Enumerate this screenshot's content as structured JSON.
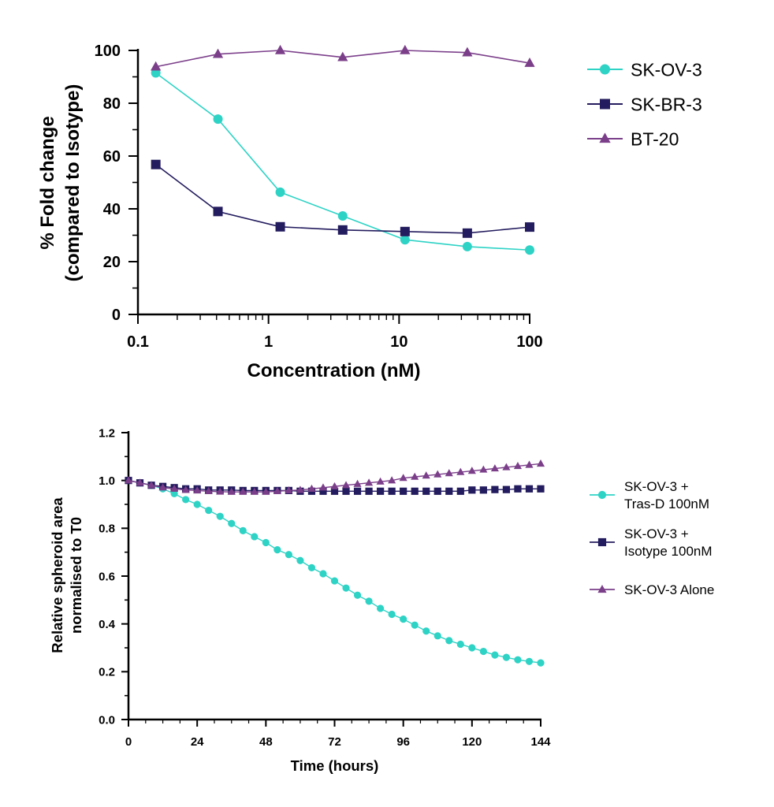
{
  "chart_data": [
    {
      "type": "line",
      "xscale": "log",
      "xlabel": "Concentration (nM)",
      "ylabel_lines": [
        "% Fold change",
        "(compared to Isotype)"
      ],
      "xlim": [
        0.1,
        100
      ],
      "ylim": [
        0,
        100
      ],
      "x_ticks": [
        {
          "value": 0.1,
          "label": "0.1"
        },
        {
          "value": 1,
          "label": "1"
        },
        {
          "value": 10,
          "label": "10"
        },
        {
          "value": 100,
          "label": "100"
        }
      ],
      "y_ticks": [
        {
          "value": 0,
          "label": "0"
        },
        {
          "value": 20,
          "label": "20"
        },
        {
          "value": 40,
          "label": "40"
        },
        {
          "value": 60,
          "label": "60"
        },
        {
          "value": 80,
          "label": "80"
        },
        {
          "value": 100,
          "label": "100"
        }
      ],
      "grid": false,
      "legend": "right",
      "x": [
        0.137,
        0.41,
        1.23,
        3.7,
        11.1,
        33.3,
        100
      ],
      "series": [
        {
          "name": "SK-OV-3",
          "marker": "circle",
          "color": "#2ed3c6",
          "values": [
            91.5,
            74.0,
            46.3,
            37.3,
            28.3,
            25.7,
            24.4
          ]
        },
        {
          "name": "SK-BR-3",
          "marker": "square",
          "color": "#231c5e",
          "values": [
            56.8,
            39.0,
            33.2,
            32.0,
            31.4,
            30.8,
            33.1
          ]
        },
        {
          "name": "BT-20",
          "marker": "triangle",
          "color": "#7b3f8a",
          "values": [
            93.8,
            98.6,
            100.0,
            97.4,
            100.0,
            99.2,
            95.2
          ]
        }
      ]
    },
    {
      "type": "line",
      "xlabel": "Time (hours)",
      "ylabel_lines": [
        "Relative spheroid area",
        "normalised to T0"
      ],
      "xlim": [
        0,
        144
      ],
      "ylim": [
        0,
        1.2
      ],
      "x_ticks": [
        {
          "value": 0,
          "label": "0"
        },
        {
          "value": 24,
          "label": "24"
        },
        {
          "value": 48,
          "label": "48"
        },
        {
          "value": 72,
          "label": "72"
        },
        {
          "value": 96,
          "label": "96"
        },
        {
          "value": 120,
          "label": "120"
        },
        {
          "value": 144,
          "label": "144"
        }
      ],
      "y_ticks": [
        {
          "value": 0,
          "label": "0.0"
        },
        {
          "value": 0.2,
          "label": "0.2"
        },
        {
          "value": 0.4,
          "label": "0.4"
        },
        {
          "value": 0.6,
          "label": "0.6"
        },
        {
          "value": 0.8,
          "label": "0.8"
        },
        {
          "value": 1.0,
          "label": "1.0"
        },
        {
          "value": 1.2,
          "label": "1.2"
        }
      ],
      "grid": false,
      "legend": "right",
      "x": [
        0,
        4,
        8,
        12,
        16,
        20,
        24,
        28,
        32,
        36,
        40,
        44,
        48,
        52,
        56,
        60,
        64,
        68,
        72,
        76,
        80,
        84,
        88,
        92,
        96,
        100,
        104,
        108,
        112,
        116,
        120,
        124,
        128,
        132,
        136,
        140,
        144
      ],
      "series": [
        {
          "name_lines": [
            "SK-OV-3 +",
            "Tras-D 100nM"
          ],
          "marker": "circle",
          "color": "#2ed3c6",
          "values": [
            1.0,
            0.99,
            0.98,
            0.965,
            0.945,
            0.92,
            0.9,
            0.875,
            0.85,
            0.82,
            0.79,
            0.765,
            0.74,
            0.71,
            0.69,
            0.665,
            0.635,
            0.61,
            0.58,
            0.55,
            0.52,
            0.495,
            0.465,
            0.44,
            0.42,
            0.395,
            0.37,
            0.35,
            0.33,
            0.315,
            0.3,
            0.285,
            0.27,
            0.26,
            0.25,
            0.243,
            0.237
          ]
        },
        {
          "name_lines": [
            "SK-OV-3 +",
            "Isotype 100nM"
          ],
          "marker": "square",
          "color": "#231c5e",
          "values": [
            1.0,
            0.99,
            0.98,
            0.975,
            0.97,
            0.965,
            0.965,
            0.96,
            0.96,
            0.96,
            0.958,
            0.958,
            0.958,
            0.958,
            0.958,
            0.955,
            0.955,
            0.955,
            0.955,
            0.955,
            0.955,
            0.955,
            0.955,
            0.955,
            0.955,
            0.955,
            0.955,
            0.955,
            0.955,
            0.955,
            0.96,
            0.96,
            0.962,
            0.962,
            0.965,
            0.965,
            0.965
          ]
        },
        {
          "name_lines": [
            "SK-OV-3 Alone"
          ],
          "marker": "triangle",
          "color": "#7b3f8a",
          "values": [
            1.0,
            0.99,
            0.98,
            0.97,
            0.965,
            0.96,
            0.958,
            0.955,
            0.953,
            0.952,
            0.952,
            0.952,
            0.952,
            0.955,
            0.958,
            0.96,
            0.965,
            0.97,
            0.975,
            0.98,
            0.985,
            0.99,
            0.995,
            1.0,
            1.01,
            1.015,
            1.02,
            1.025,
            1.03,
            1.035,
            1.04,
            1.045,
            1.05,
            1.055,
            1.06,
            1.065,
            1.07
          ]
        }
      ]
    }
  ]
}
